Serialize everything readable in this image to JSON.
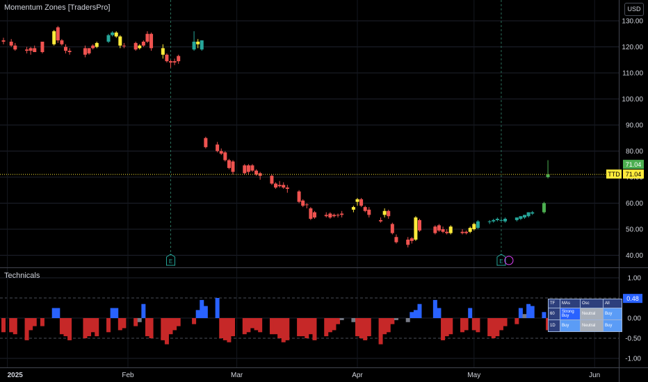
{
  "header": {
    "title": "Momentum Zones [TradersPro]",
    "currency": "USD"
  },
  "subpane": {
    "title": "Technicals"
  },
  "colors": {
    "up": "#26a69a",
    "down": "#ef5350",
    "neutral": "#ffeb3b",
    "hist_pos": "#2962ff",
    "hist_neg": "#c62828",
    "hist_flat": "#787b86",
    "price_line": "#ffeb3b",
    "last_up": "#4caf50"
  },
  "chart_data": [
    {
      "type": "candlestick",
      "title": "Momentum Zones [TradersPro]",
      "price_axis": {
        "range": [
          36,
          133
        ],
        "ticks": [
          40,
          50,
          60,
          70,
          80,
          90,
          100,
          110,
          120,
          130
        ],
        "tick_labels": [
          "40.00",
          "50.00",
          "60.00",
          "70.00",
          "80.00",
          "90.00",
          "100.00",
          "110.00",
          "120.00",
          "130.00"
        ]
      },
      "time_axis": {
        "labels": [
          "2025",
          "Feb",
          "Mar",
          "Apr",
          "May",
          "Jun"
        ],
        "label_dates": [
          "2025-01-01",
          "2025-02-01",
          "2025-03-01",
          "2025-04-01",
          "2025-05-01",
          "2025-06-01"
        ]
      },
      "last_price": {
        "symbol": "TTD",
        "value": 71.04,
        "value_label": "71.04"
      },
      "events": [
        {
          "date": "2025-02-12",
          "marker": "E"
        },
        {
          "date": "2025-05-08",
          "marker": "E"
        }
      ],
      "candles": [
        {
          "d": "2024-12-31",
          "o": 122.5,
          "h": 123.5,
          "l": 121.0,
          "c": 122.0,
          "z": "down"
        },
        {
          "d": "2025-01-02",
          "o": 122.0,
          "h": 123.0,
          "l": 120.0,
          "c": 120.5,
          "z": "down"
        },
        {
          "d": "2025-01-03",
          "o": 120.5,
          "h": 121.5,
          "l": 118.5,
          "c": 119.0,
          "z": "down"
        },
        {
          "d": "2025-01-06",
          "o": 119.0,
          "h": 120.0,
          "l": 117.5,
          "c": 118.5,
          "z": "down"
        },
        {
          "d": "2025-01-07",
          "o": 118.5,
          "h": 120.0,
          "l": 117.0,
          "c": 119.5,
          "z": "down"
        },
        {
          "d": "2025-01-08",
          "o": 119.5,
          "h": 120.5,
          "l": 118.0,
          "c": 118.0,
          "z": "down"
        },
        {
          "d": "2025-01-10",
          "o": 118.0,
          "h": 122.0,
          "l": 117.5,
          "c": 122.0,
          "z": "down"
        },
        {
          "d": "2025-01-13",
          "o": 121.0,
          "h": 126.5,
          "l": 120.5,
          "c": 126.0,
          "z": "neutral"
        },
        {
          "d": "2025-01-14",
          "o": 127.5,
          "h": 128.0,
          "l": 121.5,
          "c": 122.5,
          "z": "down"
        },
        {
          "d": "2025-01-15",
          "o": 122.5,
          "h": 123.0,
          "l": 120.5,
          "c": 121.0,
          "z": "down"
        },
        {
          "d": "2025-01-16",
          "o": 120.0,
          "h": 121.0,
          "l": 117.5,
          "c": 118.5,
          "z": "down"
        },
        {
          "d": "2025-01-17",
          "o": 118.5,
          "h": 119.5,
          "l": 117.0,
          "c": 118.0,
          "z": "down"
        },
        {
          "d": "2025-01-21",
          "o": 119.5,
          "h": 120.5,
          "l": 116.0,
          "c": 117.0,
          "z": "down"
        },
        {
          "d": "2025-01-22",
          "o": 117.5,
          "h": 119.5,
          "l": 117.0,
          "c": 119.5,
          "z": "down"
        },
        {
          "d": "2025-01-23",
          "o": 119.5,
          "h": 121.0,
          "l": 119.0,
          "c": 120.5,
          "z": "down"
        },
        {
          "d": "2025-01-24",
          "o": 120.0,
          "h": 122.0,
          "l": 119.5,
          "c": 121.5,
          "z": "neutral"
        },
        {
          "d": "2025-01-27",
          "o": 122.0,
          "h": 125.0,
          "l": 121.5,
          "c": 124.5,
          "z": "up"
        },
        {
          "d": "2025-01-28",
          "o": 124.5,
          "h": 126.0,
          "l": 124.0,
          "c": 125.5,
          "z": "up"
        },
        {
          "d": "2025-01-29",
          "o": 125.5,
          "h": 126.0,
          "l": 123.5,
          "c": 124.0,
          "z": "neutral"
        },
        {
          "d": "2025-01-30",
          "o": 124.0,
          "h": 124.5,
          "l": 119.5,
          "c": 120.5,
          "z": "neutral"
        },
        {
          "d": "2025-01-31",
          "o": 120.5,
          "h": 121.5,
          "l": 119.5,
          "c": 120.5,
          "z": "down"
        },
        {
          "d": "2025-02-03",
          "o": 121.5,
          "h": 122.0,
          "l": 118.5,
          "c": 119.0,
          "z": "down"
        },
        {
          "d": "2025-02-04",
          "o": 119.5,
          "h": 121.0,
          "l": 119.0,
          "c": 120.5,
          "z": "neutral"
        },
        {
          "d": "2025-02-05",
          "o": 120.5,
          "h": 122.5,
          "l": 120.0,
          "c": 122.0,
          "z": "down"
        },
        {
          "d": "2025-02-06",
          "o": 122.0,
          "h": 126.0,
          "l": 121.5,
          "c": 125.0,
          "z": "down"
        },
        {
          "d": "2025-02-07",
          "o": 125.0,
          "h": 125.5,
          "l": 118.5,
          "c": 119.5,
          "z": "down"
        },
        {
          "d": "2025-02-10",
          "o": 119.5,
          "h": 121.0,
          "l": 115.5,
          "c": 117.0,
          "z": "neutral"
        },
        {
          "d": "2025-02-11",
          "o": 117.0,
          "h": 117.5,
          "l": 114.0,
          "c": 114.5,
          "z": "down"
        },
        {
          "d": "2025-02-12",
          "o": 114.5,
          "h": 115.0,
          "l": 112.0,
          "c": 114.0,
          "z": "down"
        },
        {
          "d": "2025-02-13",
          "o": 114.0,
          "h": 115.5,
          "l": 113.0,
          "c": 114.5,
          "z": "down"
        },
        {
          "d": "2025-02-14",
          "o": 114.5,
          "h": 117.0,
          "l": 113.5,
          "c": 116.5,
          "z": "down"
        },
        {
          "d": "2025-02-18",
          "o": 119.0,
          "h": 126.0,
          "l": 118.5,
          "c": 122.0,
          "z": "up"
        },
        {
          "d": "2025-02-19",
          "o": 122.0,
          "h": 123.0,
          "l": 119.5,
          "c": 121.0,
          "z": "neutral"
        },
        {
          "d": "2025-02-20",
          "o": 119.0,
          "h": 122.5,
          "l": 118.5,
          "c": 122.5,
          "z": "up"
        },
        {
          "d": "2025-02-21",
          "o": 85.0,
          "h": 85.5,
          "l": 81.0,
          "c": 81.5,
          "z": "down"
        },
        {
          "d": "2025-02-24",
          "o": 82.5,
          "h": 83.5,
          "l": 79.5,
          "c": 80.0,
          "z": "down"
        },
        {
          "d": "2025-02-25",
          "o": 80.0,
          "h": 81.0,
          "l": 78.5,
          "c": 79.0,
          "z": "down"
        },
        {
          "d": "2025-02-26",
          "o": 79.5,
          "h": 80.0,
          "l": 76.0,
          "c": 76.5,
          "z": "down"
        },
        {
          "d": "2025-02-27",
          "o": 76.5,
          "h": 77.0,
          "l": 73.0,
          "c": 73.5,
          "z": "down"
        },
        {
          "d": "2025-02-28",
          "o": 76.0,
          "h": 76.5,
          "l": 71.0,
          "c": 72.0,
          "z": "down"
        },
        {
          "d": "2025-03-03",
          "o": 74.5,
          "h": 75.0,
          "l": 71.0,
          "c": 71.5,
          "z": "down"
        },
        {
          "d": "2025-03-04",
          "o": 72.0,
          "h": 75.0,
          "l": 71.0,
          "c": 74.5,
          "z": "down"
        },
        {
          "d": "2025-03-05",
          "o": 74.5,
          "h": 75.0,
          "l": 72.0,
          "c": 72.5,
          "z": "down"
        },
        {
          "d": "2025-03-06",
          "o": 72.5,
          "h": 73.0,
          "l": 70.5,
          "c": 71.0,
          "z": "down"
        },
        {
          "d": "2025-03-07",
          "o": 71.5,
          "h": 72.0,
          "l": 69.0,
          "c": 70.5,
          "z": "down"
        },
        {
          "d": "2025-03-10",
          "o": 70.5,
          "h": 71.0,
          "l": 67.0,
          "c": 67.5,
          "z": "down"
        },
        {
          "d": "2025-03-11",
          "o": 67.5,
          "h": 68.0,
          "l": 65.5,
          "c": 66.0,
          "z": "down"
        },
        {
          "d": "2025-03-12",
          "o": 66.5,
          "h": 68.5,
          "l": 66.0,
          "c": 67.0,
          "z": "down"
        },
        {
          "d": "2025-03-13",
          "o": 67.0,
          "h": 68.0,
          "l": 65.5,
          "c": 66.0,
          "z": "down"
        },
        {
          "d": "2025-03-14",
          "o": 66.0,
          "h": 67.0,
          "l": 64.0,
          "c": 65.5,
          "z": "down"
        },
        {
          "d": "2025-03-17",
          "o": 64.5,
          "h": 65.0,
          "l": 60.0,
          "c": 60.5,
          "z": "down"
        },
        {
          "d": "2025-03-18",
          "o": 61.0,
          "h": 61.5,
          "l": 58.5,
          "c": 59.0,
          "z": "down"
        },
        {
          "d": "2025-03-19",
          "o": 59.5,
          "h": 60.0,
          "l": 58.0,
          "c": 59.5,
          "z": "down"
        },
        {
          "d": "2025-03-20",
          "o": 58.0,
          "h": 58.5,
          "l": 53.5,
          "c": 54.0,
          "z": "down"
        },
        {
          "d": "2025-03-21",
          "o": 56.5,
          "h": 57.0,
          "l": 54.0,
          "c": 54.5,
          "z": "down"
        },
        {
          "d": "2025-03-24",
          "o": 55.5,
          "h": 56.5,
          "l": 54.5,
          "c": 55.0,
          "z": "down"
        },
        {
          "d": "2025-03-25",
          "o": 56.0,
          "h": 56.5,
          "l": 54.0,
          "c": 54.5,
          "z": "down"
        },
        {
          "d": "2025-03-26",
          "o": 55.5,
          "h": 56.0,
          "l": 54.5,
          "c": 55.0,
          "z": "down"
        },
        {
          "d": "2025-03-27",
          "o": 55.5,
          "h": 56.0,
          "l": 54.5,
          "c": 55.5,
          "z": "down"
        },
        {
          "d": "2025-03-28",
          "o": 55.5,
          "h": 57.0,
          "l": 54.5,
          "c": 56.0,
          "z": "down"
        },
        {
          "d": "2025-03-31",
          "o": 57.5,
          "h": 59.0,
          "l": 56.5,
          "c": 58.5,
          "z": "neutral"
        },
        {
          "d": "2025-04-01",
          "o": 60.5,
          "h": 62.0,
          "l": 59.0,
          "c": 61.5,
          "z": "neutral"
        },
        {
          "d": "2025-04-02",
          "o": 61.5,
          "h": 62.0,
          "l": 58.5,
          "c": 59.0,
          "z": "down"
        },
        {
          "d": "2025-04-03",
          "o": 58.5,
          "h": 59.0,
          "l": 56.5,
          "c": 57.0,
          "z": "down"
        },
        {
          "d": "2025-04-04",
          "o": 57.5,
          "h": 58.5,
          "l": 54.5,
          "c": 55.5,
          "z": "down"
        },
        {
          "d": "2025-04-07",
          "o": 53.5,
          "h": 54.5,
          "l": 52.5,
          "c": 53.0,
          "z": "down"
        },
        {
          "d": "2025-04-08",
          "o": 57.0,
          "h": 58.0,
          "l": 54.5,
          "c": 55.5,
          "z": "neutral"
        },
        {
          "d": "2025-04-09",
          "o": 57.0,
          "h": 57.5,
          "l": 54.0,
          "c": 55.0,
          "z": "down"
        },
        {
          "d": "2025-04-10",
          "o": 52.0,
          "h": 52.5,
          "l": 48.0,
          "c": 48.5,
          "z": "down"
        },
        {
          "d": "2025-04-11",
          "o": 47.0,
          "h": 48.0,
          "l": 44.5,
          "c": 45.0,
          "z": "down"
        },
        {
          "d": "2025-04-14",
          "o": 46.0,
          "h": 47.0,
          "l": 43.0,
          "c": 44.0,
          "z": "down"
        },
        {
          "d": "2025-04-15",
          "o": 45.5,
          "h": 47.0,
          "l": 44.5,
          "c": 46.5,
          "z": "down"
        },
        {
          "d": "2025-04-16",
          "o": 46.0,
          "h": 55.0,
          "l": 45.5,
          "c": 54.5,
          "z": "neutral"
        },
        {
          "d": "2025-04-17",
          "o": 53.5,
          "h": 54.0,
          "l": 49.0,
          "c": 49.5,
          "z": "down"
        },
        {
          "d": "2025-04-21",
          "o": 51.0,
          "h": 51.5,
          "l": 48.0,
          "c": 48.5,
          "z": "down"
        },
        {
          "d": "2025-04-22",
          "o": 51.5,
          "h": 52.0,
          "l": 49.0,
          "c": 49.5,
          "z": "down"
        },
        {
          "d": "2025-04-23",
          "o": 50.0,
          "h": 51.0,
          "l": 48.5,
          "c": 49.0,
          "z": "down"
        },
        {
          "d": "2025-04-24",
          "o": 49.0,
          "h": 50.0,
          "l": 48.0,
          "c": 48.5,
          "z": "down"
        },
        {
          "d": "2025-04-25",
          "o": 48.5,
          "h": 51.5,
          "l": 48.0,
          "c": 51.0,
          "z": "neutral"
        },
        {
          "d": "2025-04-28",
          "o": 48.5,
          "h": 50.0,
          "l": 48.0,
          "c": 49.0,
          "z": "down"
        },
        {
          "d": "2025-04-29",
          "o": 48.5,
          "h": 49.5,
          "l": 48.0,
          "c": 49.0,
          "z": "down"
        },
        {
          "d": "2025-04-30",
          "o": 49.0,
          "h": 51.0,
          "l": 48.5,
          "c": 50.5,
          "z": "neutral"
        },
        {
          "d": "2025-05-01",
          "o": 50.0,
          "h": 52.5,
          "l": 49.5,
          "c": 52.0,
          "z": "neutral"
        },
        {
          "d": "2025-05-02",
          "o": 50.5,
          "h": 53.5,
          "l": 50.0,
          "c": 53.0,
          "z": "up"
        },
        {
          "d": "2025-05-05",
          "o": 53.0,
          "h": 53.5,
          "l": 52.0,
          "c": 53.0,
          "z": "up"
        },
        {
          "d": "2025-05-06",
          "o": 53.0,
          "h": 54.0,
          "l": 52.5,
          "c": 53.5,
          "z": "up"
        },
        {
          "d": "2025-05-07",
          "o": 53.5,
          "h": 54.5,
          "l": 53.0,
          "c": 54.0,
          "z": "up"
        },
        {
          "d": "2025-05-08",
          "o": 53.5,
          "h": 54.0,
          "l": 53.0,
          "c": 53.5,
          "z": "up"
        },
        {
          "d": "2025-05-09",
          "o": 53.0,
          "h": 54.5,
          "l": 52.5,
          "c": 54.0,
          "z": "up"
        },
        {
          "d": "2025-05-12",
          "o": 53.5,
          "h": 54.5,
          "l": 53.0,
          "c": 54.5,
          "z": "up"
        },
        {
          "d": "2025-05-13",
          "o": 54.0,
          "h": 55.0,
          "l": 53.5,
          "c": 55.0,
          "z": "up"
        },
        {
          "d": "2025-05-14",
          "o": 54.5,
          "h": 55.5,
          "l": 54.0,
          "c": 55.5,
          "z": "up"
        },
        {
          "d": "2025-05-15",
          "o": 55.0,
          "h": 56.5,
          "l": 54.5,
          "c": 56.5,
          "z": "up"
        },
        {
          "d": "2025-05-16",
          "o": 56.0,
          "h": 57.0,
          "l": 55.5,
          "c": 56.5,
          "z": "up"
        },
        {
          "d": "2025-05-19",
          "o": 56.5,
          "h": 60.5,
          "l": 56.0,
          "c": 60.0,
          "z": "up"
        },
        {
          "d": "2025-05-20",
          "o": 70.0,
          "h": 76.5,
          "l": 69.5,
          "c": 71.0,
          "z": "up"
        }
      ]
    },
    {
      "type": "bar",
      "title": "Technicals",
      "y_axis": {
        "range": [
          -1.15,
          1.15
        ],
        "ticks": [
          1,
          0.5,
          0,
          -0.5,
          -1
        ],
        "tick_labels": [
          "1.00",
          "0.50",
          "0.00",
          "-0.50",
          "-1.00"
        ],
        "dashed_levels": [
          0.5,
          -0.5
        ]
      },
      "last_value": {
        "value": 0.48,
        "value_label": "0.48"
      },
      "values": [
        -0.35,
        -0.35,
        -0.4,
        -0.55,
        -0.3,
        -0.2,
        -0.2,
        0.25,
        0.25,
        -0.4,
        -0.45,
        -0.55,
        -0.5,
        -0.45,
        -0.35,
        -0.45,
        -0.35,
        0.25,
        0.25,
        -0.3,
        -0.25,
        -0.2,
        -0.1,
        0.35,
        -0.45,
        -0.5,
        -0.55,
        -0.65,
        -0.4,
        -0.3,
        -0.2,
        -0.15,
        0.2,
        0.45,
        0.3,
        0.5,
        -0.5,
        -0.55,
        -0.6,
        -0.45,
        -0.4,
        -0.35,
        -0.25,
        -0.3,
        -0.35,
        -0.4,
        -0.4,
        -0.5,
        -0.6,
        -0.55,
        -0.45,
        -0.45,
        -0.5,
        -0.4,
        -0.55,
        -0.45,
        -0.35,
        -0.3,
        -0.15,
        -0.05,
        -0.1,
        -0.45,
        -0.5,
        -0.55,
        -0.45,
        -0.65,
        -0.4,
        -0.35,
        -0.15,
        -0.05,
        -0.1,
        0.15,
        0.2,
        0.35,
        0.45,
        0.25,
        -0.55,
        -0.45,
        -0.4,
        -0.35,
        -0.3,
        0.25,
        -0.3,
        -0.35,
        -0.45,
        -0.5,
        -0.45,
        -0.3,
        -0.2,
        -0.15,
        0.25,
        0.1,
        0.35,
        0.3,
        0.15,
        -0.3,
        -0.45,
        -0.35,
        0.25,
        -0.25,
        -0.4,
        -0.35,
        0.1,
        0.15,
        0.35,
        0.35,
        0.35,
        0.3,
        0.25,
        0.2,
        -0.3,
        0.25,
        0.3,
        0.35,
        0.45,
        0.45,
        0.45,
        0.48
      ]
    }
  ],
  "tech_table": {
    "headers": [
      "TF",
      "MAs",
      "Osc",
      "All"
    ],
    "rows": [
      {
        "tf": "60",
        "mas": "Strong Buy",
        "osc": "Neutral",
        "all": "Buy"
      },
      {
        "tf": "1D",
        "mas": "Buy",
        "osc": "Neutral",
        "all": "Buy"
      }
    ],
    "colors": {
      "strong_buy": "#2962ff",
      "buy": "#5b9cf6",
      "neutral": "#a7aeb9"
    }
  }
}
